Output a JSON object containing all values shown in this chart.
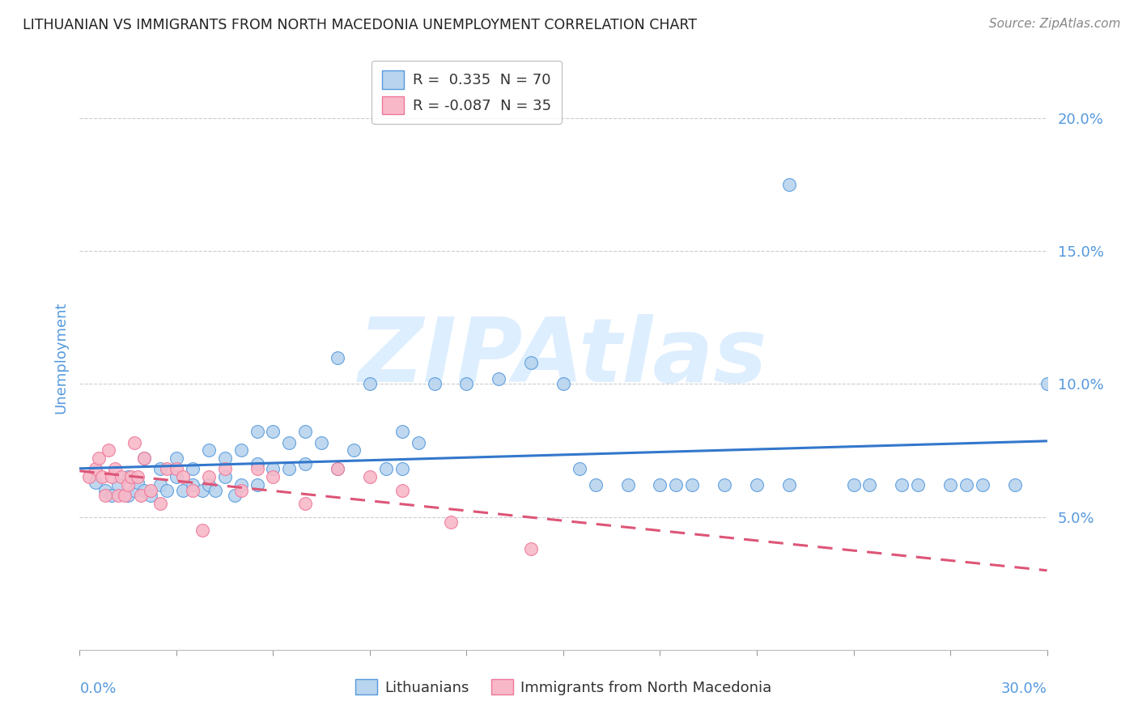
{
  "title": "LITHUANIAN VS IMMIGRANTS FROM NORTH MACEDONIA UNEMPLOYMENT CORRELATION CHART",
  "source": "Source: ZipAtlas.com",
  "ylabel": "Unemployment",
  "xlim": [
    0.0,
    0.3
  ],
  "ylim": [
    0.0,
    0.22
  ],
  "yticks": [
    0.05,
    0.1,
    0.15,
    0.2
  ],
  "ytick_labels": [
    "5.0%",
    "10.0%",
    "15.0%",
    "20.0%"
  ],
  "legend1_label": "R =  0.335  N = 70",
  "legend2_label": "R = -0.087  N = 35",
  "bottom_label1": "Lithuanians",
  "bottom_label2": "Immigrants from North Macedonia",
  "color_blue": "#b8d4ee",
  "color_pink": "#f8b8c8",
  "edge_blue": "#5599dd",
  "edge_pink": "#ee7799",
  "line_blue": "#3377cc",
  "line_pink": "#dd5577",
  "background_color": "#ffffff",
  "grid_color": "#cccccc",
  "title_color": "#222222",
  "axis_label_color": "#5599dd",
  "watermark_color": "#ddeeff",
  "blue_x": [
    0.005,
    0.008,
    0.01,
    0.012,
    0.015,
    0.015,
    0.017,
    0.018,
    0.02,
    0.02,
    0.022,
    0.025,
    0.025,
    0.027,
    0.03,
    0.03,
    0.032,
    0.035,
    0.035,
    0.038,
    0.04,
    0.04,
    0.042,
    0.045,
    0.045,
    0.048,
    0.05,
    0.05,
    0.055,
    0.055,
    0.055,
    0.06,
    0.06,
    0.065,
    0.065,
    0.07,
    0.07,
    0.075,
    0.08,
    0.08,
    0.085,
    0.09,
    0.095,
    0.1,
    0.1,
    0.105,
    0.11,
    0.12,
    0.13,
    0.14,
    0.15,
    0.155,
    0.16,
    0.17,
    0.18,
    0.185,
    0.19,
    0.2,
    0.21,
    0.22,
    0.22,
    0.24,
    0.245,
    0.255,
    0.26,
    0.27,
    0.275,
    0.28,
    0.29,
    0.3
  ],
  "blue_y": [
    0.063,
    0.06,
    0.058,
    0.062,
    0.065,
    0.058,
    0.06,
    0.063,
    0.072,
    0.06,
    0.058,
    0.068,
    0.062,
    0.06,
    0.072,
    0.065,
    0.06,
    0.068,
    0.062,
    0.06,
    0.075,
    0.062,
    0.06,
    0.072,
    0.065,
    0.058,
    0.075,
    0.062,
    0.082,
    0.07,
    0.062,
    0.082,
    0.068,
    0.078,
    0.068,
    0.082,
    0.07,
    0.078,
    0.11,
    0.068,
    0.075,
    0.1,
    0.068,
    0.082,
    0.068,
    0.078,
    0.1,
    0.1,
    0.102,
    0.108,
    0.1,
    0.068,
    0.062,
    0.062,
    0.062,
    0.062,
    0.062,
    0.062,
    0.062,
    0.062,
    0.175,
    0.062,
    0.062,
    0.062,
    0.062,
    0.062,
    0.062,
    0.062,
    0.062,
    0.1
  ],
  "pink_x": [
    0.003,
    0.005,
    0.006,
    0.007,
    0.008,
    0.009,
    0.01,
    0.011,
    0.012,
    0.013,
    0.014,
    0.015,
    0.016,
    0.017,
    0.018,
    0.019,
    0.02,
    0.022,
    0.025,
    0.027,
    0.03,
    0.032,
    0.035,
    0.038,
    0.04,
    0.045,
    0.05,
    0.055,
    0.06,
    0.07,
    0.08,
    0.09,
    0.1,
    0.115,
    0.14
  ],
  "pink_y": [
    0.065,
    0.068,
    0.072,
    0.065,
    0.058,
    0.075,
    0.065,
    0.068,
    0.058,
    0.065,
    0.058,
    0.062,
    0.065,
    0.078,
    0.065,
    0.058,
    0.072,
    0.06,
    0.055,
    0.068,
    0.068,
    0.065,
    0.06,
    0.045,
    0.065,
    0.068,
    0.06,
    0.068,
    0.065,
    0.055,
    0.068,
    0.065,
    0.06,
    0.048,
    0.038
  ]
}
